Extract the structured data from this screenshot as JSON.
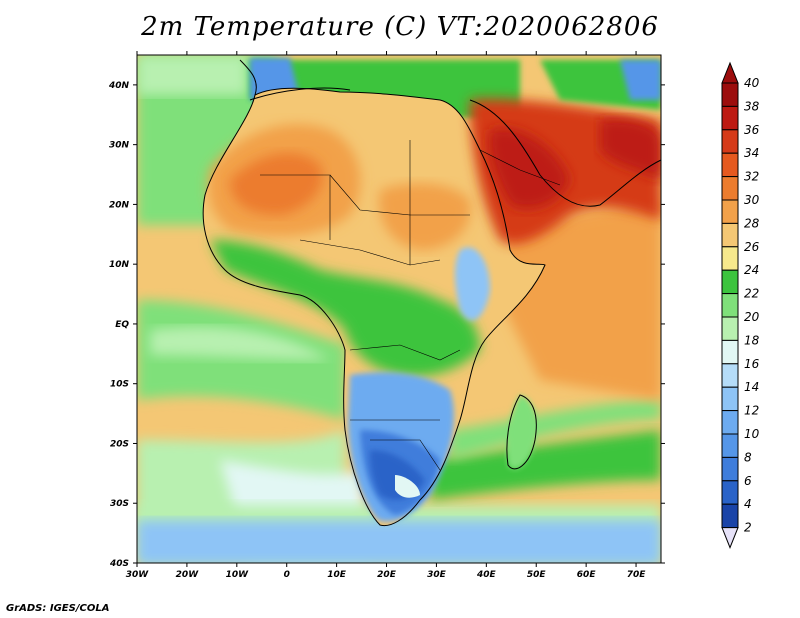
{
  "title": "2m Temperature (C) VT:2020062806",
  "credit": "GrADS: IGES/COLA",
  "map": {
    "lat_labels": [
      "40N",
      "30N",
      "20N",
      "10N",
      "EQ",
      "10S",
      "20S",
      "30S",
      "40S"
    ],
    "lat_values": [
      40,
      30,
      20,
      10,
      0,
      -10,
      -20,
      -30,
      -40
    ],
    "lon_labels": [
      "30W",
      "20W",
      "10W",
      "0",
      "10E",
      "20E",
      "30E",
      "40E",
      "50E",
      "60E",
      "70E"
    ],
    "lon_values": [
      -30,
      -20,
      -10,
      0,
      10,
      20,
      30,
      40,
      50,
      60,
      70
    ],
    "extent": {
      "lon_min": -30,
      "lon_max": 75,
      "lat_min": -40,
      "lat_max": 45
    }
  },
  "legend": {
    "levels": [
      "2",
      "4",
      "6",
      "8",
      "10",
      "12",
      "14",
      "16",
      "18",
      "20",
      "22",
      "24",
      "26",
      "28",
      "30",
      "32",
      "34",
      "36",
      "38",
      "40"
    ],
    "colors": [
      "#0c1f86",
      "#1a44a8",
      "#2a63c8",
      "#3f7ddb",
      "#5596e8",
      "#6dabf0",
      "#8ec4f6",
      "#b5dcf8",
      "#e2f7f4",
      "#b8f0b0",
      "#7fe07a",
      "#3cc43e",
      "#f6e88c",
      "#f4c774",
      "#f2a14a",
      "#ec7c2e",
      "#e5591f",
      "#d53a19",
      "#bd1a12",
      "#9c0d0d"
    ]
  }
}
